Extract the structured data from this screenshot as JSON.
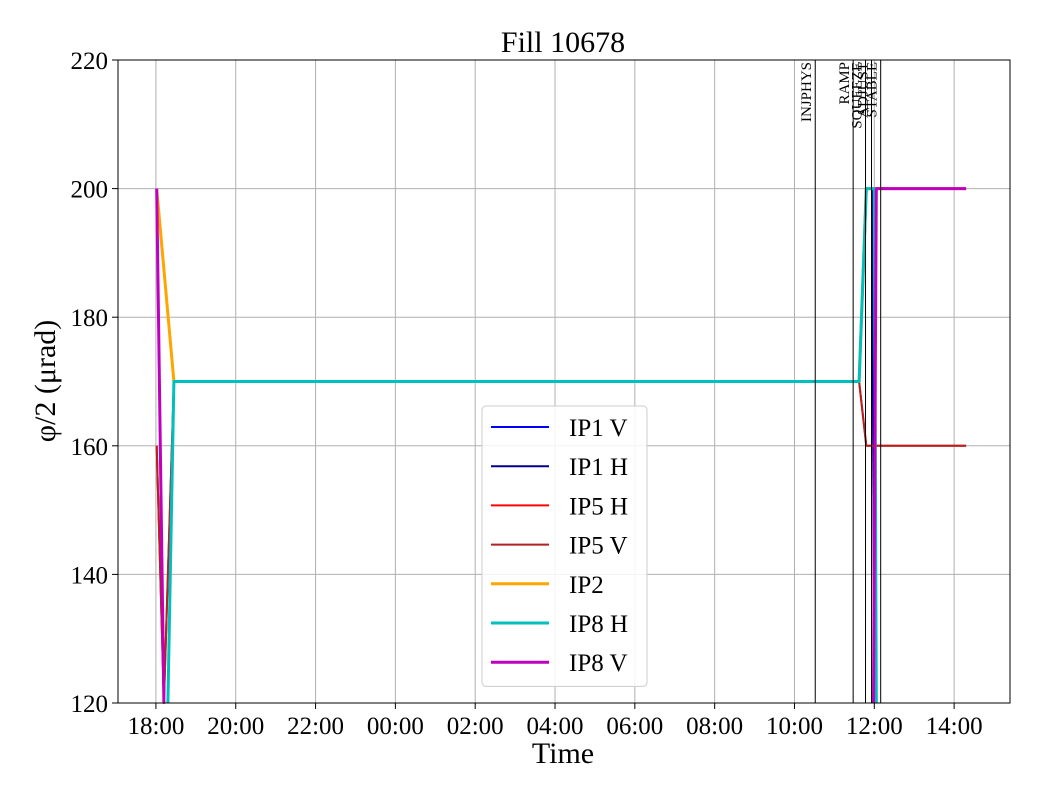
{
  "chart_data": {
    "type": "line",
    "title": "Fill 10678",
    "xlabel": "Time",
    "ylabel": "φ/2 (μrad)",
    "ylim": [
      120,
      220
    ],
    "yticks": [
      120,
      140,
      160,
      180,
      200,
      220
    ],
    "xlim_hours": [
      -0.95,
      21.4
    ],
    "xticks": [
      {
        "label": "18:00",
        "h": 0
      },
      {
        "label": "20:00",
        "h": 2
      },
      {
        "label": "22:00",
        "h": 4
      },
      {
        "label": "00:00",
        "h": 6
      },
      {
        "label": "02:00",
        "h": 8
      },
      {
        "label": "04:00",
        "h": 10
      },
      {
        "label": "06:00",
        "h": 12
      },
      {
        "label": "08:00",
        "h": 14
      },
      {
        "label": "10:00",
        "h": 16
      },
      {
        "label": "12:00",
        "h": 18
      },
      {
        "label": "14:00",
        "h": 20
      }
    ],
    "grid": true,
    "legend_position": "lower-center",
    "markers": [
      {
        "label": "INJPHYS",
        "h": 16.52
      },
      {
        "label": "RAMP",
        "h": 17.47
      },
      {
        "label": "SQUEEZE",
        "h": 17.78
      },
      {
        "label": "ADJUST",
        "h": 17.93
      },
      {
        "label": "STABLE",
        "h": 18.16
      }
    ],
    "series": [
      {
        "name": "IP1 V",
        "color": "#0000ff",
        "width": 2,
        "points": [
          [
            17.95,
            200
          ],
          [
            18.0,
            120
          ]
        ]
      },
      {
        "name": "IP1 H",
        "color": "#00008b",
        "width": 2,
        "points": [
          [
            17.95,
            200
          ],
          [
            18.0,
            120
          ]
        ]
      },
      {
        "name": "IP5 H",
        "color": "#ff0000",
        "width": 2,
        "points": [
          [
            0.02,
            160
          ],
          [
            0.2,
            120
          ],
          [
            0.45,
            170
          ],
          [
            17.62,
            170
          ],
          [
            17.8,
            160
          ],
          [
            20.3,
            160
          ]
        ]
      },
      {
        "name": "IP5 V",
        "color": "#b22222",
        "width": 2,
        "points": [
          [
            0.02,
            160
          ],
          [
            0.2,
            120
          ],
          [
            0.45,
            170
          ],
          [
            17.62,
            170
          ],
          [
            17.8,
            160
          ],
          [
            20.3,
            160
          ]
        ]
      },
      {
        "name": "IP2",
        "color": "#ffa500",
        "width": 3,
        "points": [
          [
            0.02,
            200
          ],
          [
            0.45,
            170
          ],
          [
            17.62,
            170
          ],
          [
            17.8,
            200
          ],
          [
            20.3,
            200
          ]
        ]
      },
      {
        "name": "IP8 H",
        "color": "#00bfbf",
        "width": 3,
        "points": [
          [
            0.3,
            120
          ],
          [
            0.45,
            170
          ],
          [
            17.62,
            170
          ],
          [
            17.8,
            200
          ],
          [
            18.0,
            200
          ],
          [
            18.05,
            120
          ]
        ]
      },
      {
        "name": "IP8 V",
        "color": "#bf00bf",
        "width": 3,
        "points": [
          [
            0.02,
            200
          ],
          [
            0.2,
            120
          ]
        ]
      },
      {
        "name": "IP8 V",
        "color": "#bf00bf",
        "width": 3,
        "points": [
          [
            17.98,
            120
          ],
          [
            18.05,
            200
          ],
          [
            20.3,
            200
          ]
        ]
      }
    ],
    "legend": [
      {
        "name": "IP1 V",
        "color": "#0000ff",
        "width": 2
      },
      {
        "name": "IP1 H",
        "color": "#00008b",
        "width": 2
      },
      {
        "name": "IP5 H",
        "color": "#ff0000",
        "width": 2
      },
      {
        "name": "IP5 V",
        "color": "#b22222",
        "width": 2
      },
      {
        "name": "IP2",
        "color": "#ffa500",
        "width": 3
      },
      {
        "name": "IP8 H",
        "color": "#00bfbf",
        "width": 3
      },
      {
        "name": "IP8 V",
        "color": "#bf00bf",
        "width": 3
      }
    ]
  }
}
